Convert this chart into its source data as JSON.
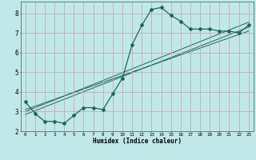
{
  "xlabel": "Humidex (Indice chaleur)",
  "bg_color": "#c0e8e8",
  "grid_color": "#c8a0a0",
  "line_color": "#1a6858",
  "xlim": [
    -0.5,
    23.5
  ],
  "ylim": [
    2.0,
    8.6
  ],
  "xticks": [
    0,
    1,
    2,
    3,
    4,
    5,
    6,
    7,
    8,
    9,
    10,
    11,
    12,
    13,
    14,
    15,
    16,
    17,
    18,
    19,
    20,
    21,
    22,
    23
  ],
  "yticks": [
    2,
    3,
    4,
    5,
    6,
    7,
    8
  ],
  "main_data_x": [
    0,
    1,
    2,
    3,
    4,
    5,
    6,
    7,
    8,
    9,
    10,
    11,
    12,
    13,
    14,
    15,
    16,
    17,
    18,
    19,
    20,
    21,
    22,
    23
  ],
  "main_data_y": [
    3.5,
    2.9,
    2.5,
    2.5,
    2.4,
    2.8,
    3.2,
    3.2,
    3.1,
    3.9,
    4.7,
    6.4,
    7.4,
    8.2,
    8.3,
    7.9,
    7.6,
    7.2,
    7.2,
    7.2,
    7.1,
    7.1,
    7.0,
    7.4
  ],
  "reg_line1_x": [
    0,
    23
  ],
  "reg_line1_y": [
    3.1,
    7.1
  ],
  "reg_line2_x": [
    0,
    23
  ],
  "reg_line2_y": [
    2.85,
    7.3
  ],
  "reg_line3_x": [
    0,
    23
  ],
  "reg_line3_y": [
    3.0,
    7.55
  ]
}
